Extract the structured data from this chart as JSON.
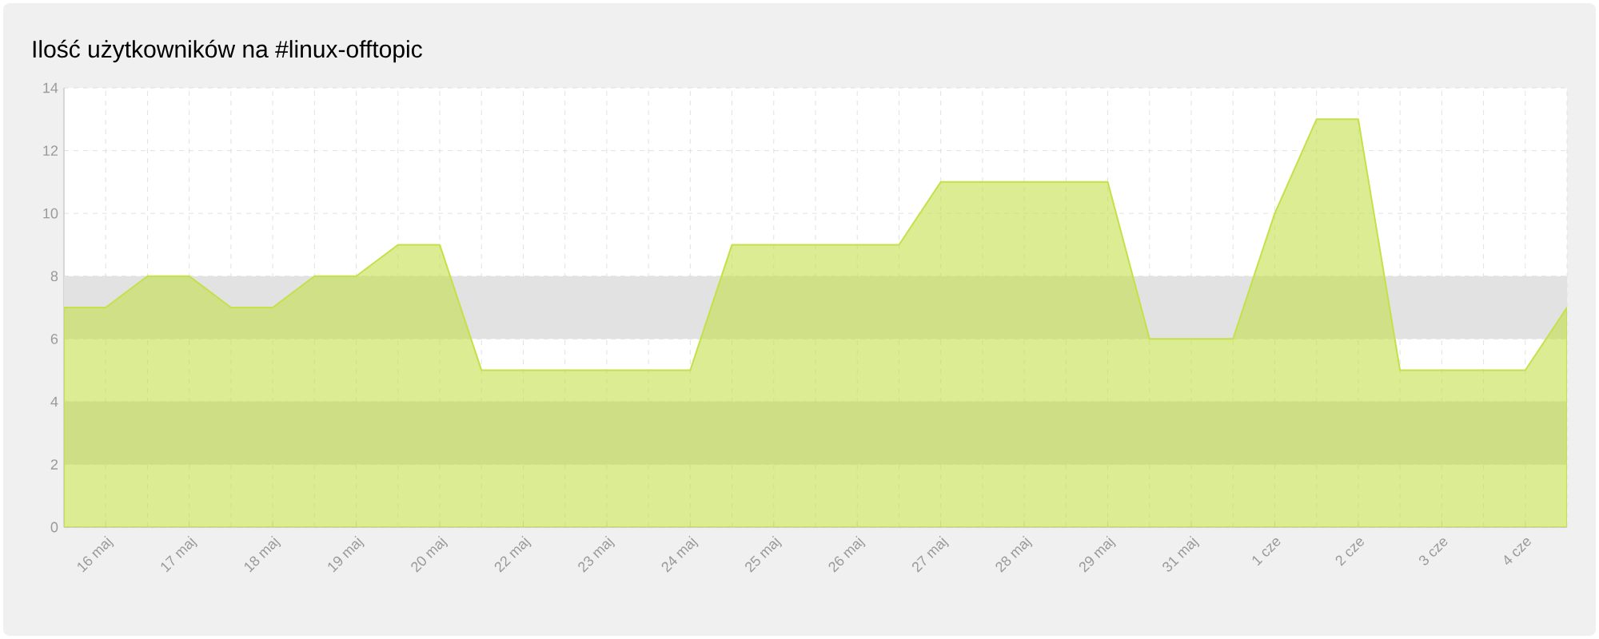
{
  "chart_data": {
    "type": "area",
    "title": "Ilość użytkowników na #linux-offtopic",
    "categories": [
      null,
      "16 maj",
      null,
      "17 maj",
      null,
      "18 maj",
      null,
      "19 maj",
      null,
      "20 maj",
      null,
      "22 maj",
      null,
      "23 maj",
      null,
      "24 maj",
      null,
      "25 maj",
      null,
      "26 maj",
      null,
      "27 maj",
      null,
      "28 maj",
      null,
      "29 maj",
      null,
      "31 maj",
      null,
      "1 cze",
      null,
      "2 cze",
      null,
      "3 cze",
      null,
      "4 cze",
      null
    ],
    "series": [
      {
        "color": "#c4e04a",
        "values": [
          7,
          7,
          8,
          8,
          7,
          7,
          8,
          8,
          9,
          9,
          5,
          5,
          5,
          5,
          5,
          5,
          9,
          9,
          9,
          9,
          9,
          11,
          11,
          11,
          11,
          11,
          6,
          6,
          6,
          10,
          13,
          13,
          5,
          5,
          5,
          5,
          7
        ]
      }
    ],
    "ylim": [
      0,
      14
    ],
    "yticks": [
      0,
      2,
      4,
      6,
      8,
      10,
      12,
      14
    ],
    "grid": true,
    "marker": "none",
    "line_style": "solid",
    "bands": [
      {
        "axis": "y",
        "from": 2,
        "to": 4,
        "color": "#dcdcdc"
      },
      {
        "axis": "y",
        "from": 6,
        "to": 8,
        "color": "#e2e2e2"
      }
    ]
  }
}
